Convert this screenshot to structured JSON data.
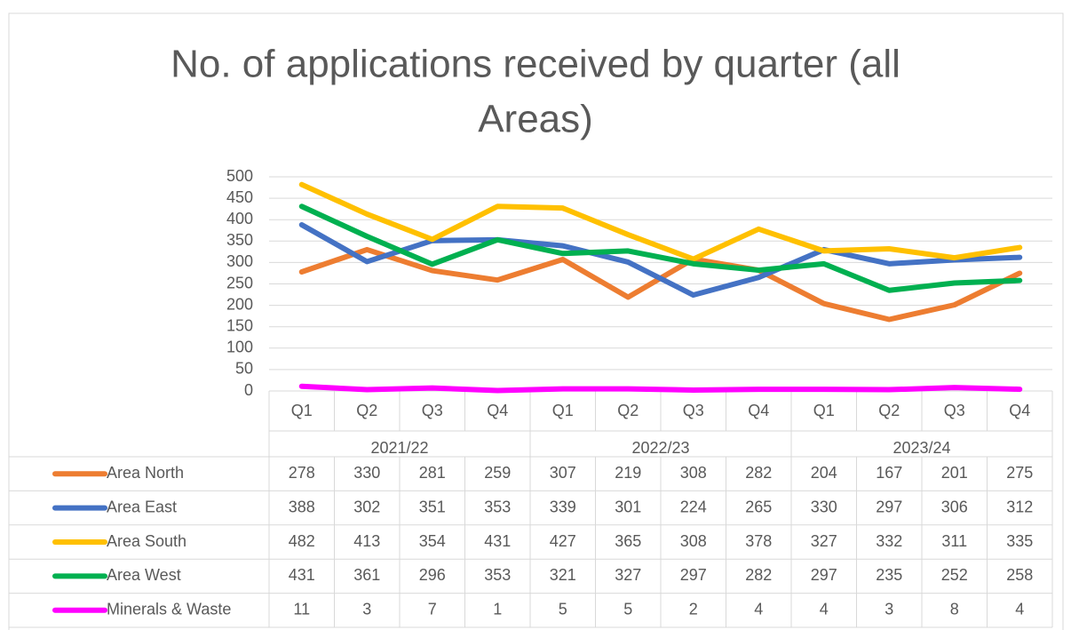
{
  "chart_data": {
    "type": "line",
    "title": "No. of applications received by quarter (all Areas)",
    "categories": [
      "Q1",
      "Q2",
      "Q3",
      "Q4",
      "Q1",
      "Q2",
      "Q3",
      "Q4",
      "Q1",
      "Q2",
      "Q3",
      "Q4"
    ],
    "groups": [
      "2021/22",
      "2022/23",
      "2023/24"
    ],
    "series": [
      {
        "name": "Area North",
        "color": "#ED7D31",
        "values": [
          278,
          330,
          281,
          259,
          307,
          219,
          308,
          282,
          204,
          167,
          201,
          275
        ]
      },
      {
        "name": "Area East",
        "color": "#4472C4",
        "values": [
          388,
          302,
          351,
          353,
          339,
          301,
          224,
          265,
          330,
          297,
          306,
          312
        ]
      },
      {
        "name": "Area South",
        "color": "#FFC000",
        "values": [
          482,
          413,
          354,
          431,
          427,
          365,
          308,
          378,
          327,
          332,
          311,
          335
        ]
      },
      {
        "name": "Area West",
        "color": "#00B050",
        "values": [
          431,
          361,
          296,
          353,
          321,
          327,
          297,
          282,
          297,
          235,
          252,
          258
        ]
      },
      {
        "name": "Minerals & Waste",
        "color": "#FF00FF",
        "values": [
          11,
          3,
          7,
          1,
          5,
          5,
          2,
          4,
          4,
          3,
          8,
          4
        ]
      }
    ],
    "ylim": [
      0,
      500
    ],
    "yticks": [
      0,
      50,
      100,
      150,
      200,
      250,
      300,
      350,
      400,
      450,
      500
    ],
    "grid": true
  }
}
